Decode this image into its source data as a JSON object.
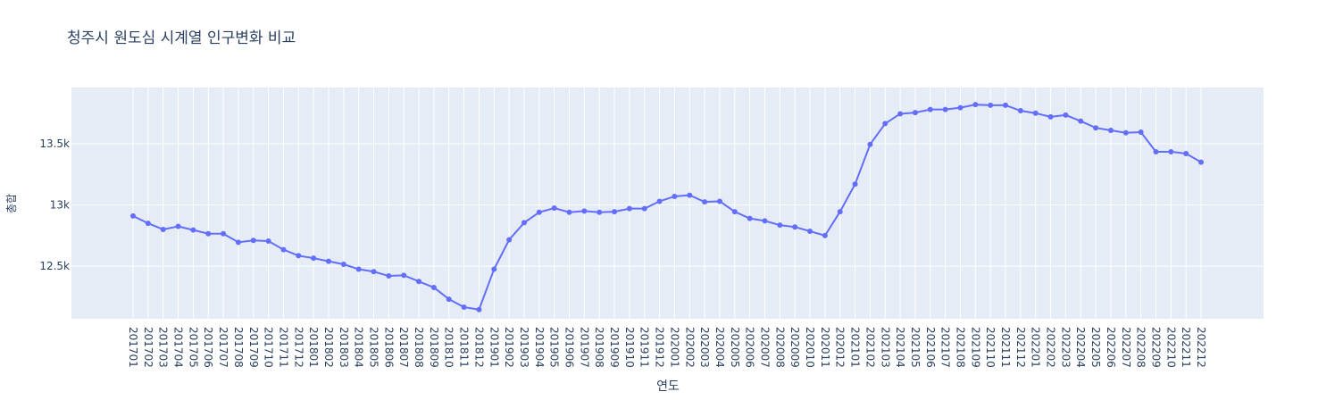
{
  "chart_data": {
    "type": "line",
    "title": "청주시 원도심 시계열 인구변화 비교",
    "xlabel": "연도",
    "ylabel": "총합",
    "categories": [
      "201701",
      "201702",
      "201703",
      "201704",
      "201705",
      "201706",
      "201707",
      "201708",
      "201709",
      "201710",
      "201711",
      "201712",
      "201801",
      "201802",
      "201803",
      "201804",
      "201805",
      "201806",
      "201807",
      "201808",
      "201809",
      "201810",
      "201811",
      "201812",
      "201901",
      "201902",
      "201903",
      "201904",
      "201905",
      "201906",
      "201907",
      "201908",
      "201909",
      "201910",
      "201911",
      "201912",
      "202001",
      "202002",
      "202003",
      "202004",
      "202005",
      "202006",
      "202007",
      "202008",
      "202009",
      "202010",
      "202011",
      "202012",
      "202101",
      "202102",
      "202103",
      "202104",
      "202105",
      "202106",
      "202107",
      "202108",
      "202109",
      "202110",
      "202111",
      "202112",
      "202201",
      "202202",
      "202203",
      "202204",
      "202205",
      "202206",
      "202207",
      "202208",
      "202209",
      "202210",
      "202211",
      "202212"
    ],
    "series": [
      {
        "values": [
          12910,
          12850,
          12800,
          12825,
          12795,
          12765,
          12765,
          12695,
          12710,
          12705,
          12635,
          12585,
          12565,
          12540,
          12515,
          12475,
          12455,
          12420,
          12425,
          12375,
          12325,
          12230,
          12165,
          12145,
          12475,
          12715,
          12855,
          12940,
          12975,
          12940,
          12950,
          12940,
          12945,
          12970,
          12970,
          13030,
          13070,
          13080,
          13025,
          13030,
          12945,
          12890,
          12870,
          12835,
          12820,
          12785,
          12750,
          12945,
          13170,
          13495,
          13665,
          13745,
          13755,
          13780,
          13780,
          13795,
          13820,
          13815,
          13815,
          13770,
          13750,
          13720,
          13735,
          13685,
          13630,
          13610,
          13590,
          13595,
          13435,
          13435,
          13420,
          13350
        ]
      }
    ],
    "yticks": [
      "12.5k",
      "13k",
      "13.5k"
    ],
    "ytick_values": [
      12500,
      13000,
      13500
    ],
    "ylim": [
      12070,
      13960
    ],
    "colors": {
      "line": "#636efa",
      "plot_bg": "#e5ecf6",
      "grid": "#ffffff",
      "text": "#2a3f5f"
    },
    "grid": true
  }
}
